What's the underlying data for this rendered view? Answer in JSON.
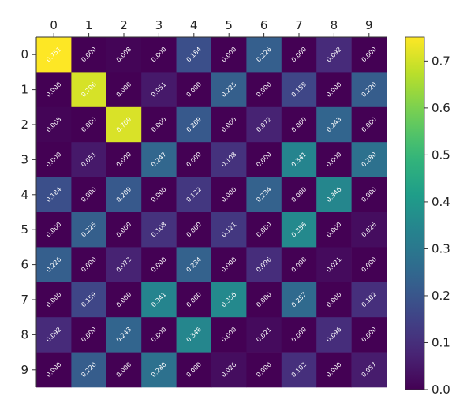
{
  "chart_data": {
    "type": "heatmap",
    "x_tick_labels": [
      "0",
      "1",
      "2",
      "3",
      "4",
      "5",
      "6",
      "7",
      "8",
      "9"
    ],
    "y_tick_labels": [
      "0",
      "1",
      "2",
      "3",
      "4",
      "5",
      "6",
      "7",
      "8",
      "9"
    ],
    "x_ticks_position": "top",
    "colormap": "viridis",
    "vmin": 0.0,
    "vmax": 0.751,
    "colorbar_ticks": [
      "0.0",
      "0.1",
      "0.2",
      "0.3",
      "0.4",
      "0.5",
      "0.6",
      "0.7"
    ],
    "values": [
      [
        0.751,
        0.0,
        0.008,
        0.0,
        0.184,
        0.0,
        0.226,
        0.0,
        0.092,
        0.0
      ],
      [
        0.0,
        0.706,
        0.0,
        0.051,
        0.0,
        0.225,
        0.0,
        0.159,
        0.0,
        0.22
      ],
      [
        0.008,
        0.0,
        0.709,
        0.0,
        0.209,
        0.0,
        0.072,
        0.0,
        0.243,
        0.0
      ],
      [
        0.0,
        0.051,
        0.0,
        0.247,
        0.0,
        0.108,
        0.0,
        0.341,
        0.0,
        0.28
      ],
      [
        0.184,
        0.0,
        0.209,
        0.0,
        0.122,
        0.0,
        0.234,
        0.0,
        0.346,
        0.0
      ],
      [
        0.0,
        0.225,
        0.0,
        0.108,
        0.0,
        0.121,
        0.0,
        0.356,
        0.0,
        0.026
      ],
      [
        0.226,
        0.0,
        0.072,
        0.0,
        0.234,
        0.0,
        0.096,
        0.0,
        0.021,
        0.0
      ],
      [
        0.0,
        0.159,
        0.0,
        0.341,
        0.0,
        0.356,
        0.0,
        0.257,
        0.0,
        0.102
      ],
      [
        0.092,
        0.0,
        0.243,
        0.0,
        0.346,
        0.0,
        0.021,
        0.0,
        0.096,
        0.0
      ],
      [
        0.0,
        0.22,
        0.0,
        0.28,
        0.0,
        0.026,
        0.0,
        0.102,
        0.0,
        0.057
      ]
    ],
    "cell_labels": [
      [
        "0.751",
        "0.000",
        "0.008",
        "0.000",
        "0.184",
        "0.000",
        "0.226",
        "0.000",
        "0.092",
        "0.000"
      ],
      [
        "0.000",
        "0.706",
        "0.000",
        "0.051",
        "0.000",
        "0.225",
        "0.000",
        "0.159",
        "0.000",
        "0.220"
      ],
      [
        "0.008",
        "0.000",
        "0.709",
        "0.000",
        "0.209",
        "0.000",
        "0.072",
        "0.000",
        "0.243",
        "0.000"
      ],
      [
        "0.000",
        "0.051",
        "0.000",
        "0.247",
        "0.000",
        "0.108",
        "0.000",
        "0.341",
        "0.000",
        "0.280"
      ],
      [
        "0.184",
        "0.000",
        "0.209",
        "0.000",
        "0.122",
        "0.000",
        "0.234",
        "0.000",
        "0.346",
        "0.000"
      ],
      [
        "0.000",
        "0.225",
        "0.000",
        "0.108",
        "0.000",
        "0.121",
        "0.000",
        "0.356",
        "0.000",
        "0.026"
      ],
      [
        "0.226",
        "0.000",
        "0.072",
        "0.000",
        "0.234",
        "0.000",
        "0.096",
        "0.000",
        "0.021",
        "0.000"
      ],
      [
        "0.000",
        "0.159",
        "0.000",
        "0.341",
        "0.000",
        "0.356",
        "0.000",
        "0.257",
        "0.000",
        "0.102"
      ],
      [
        "0.092",
        "0.000",
        "0.243",
        "0.000",
        "0.346",
        "0.000",
        "0.021",
        "0.000",
        "0.096",
        "0.000"
      ],
      [
        "0.000",
        "0.220",
        "0.000",
        "0.280",
        "0.000",
        "0.026",
        "0.000",
        "0.102",
        "0.000",
        "0.057"
      ]
    ],
    "title": "",
    "xlabel": "",
    "ylabel": "",
    "grid": false
  }
}
